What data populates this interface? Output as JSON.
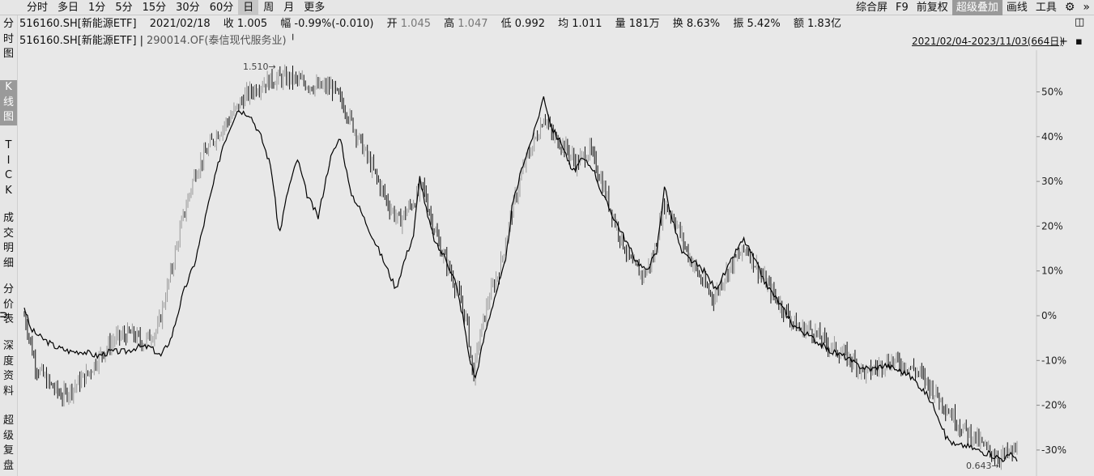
{
  "toolbar": {
    "periods": [
      {
        "label": "分时"
      },
      {
        "label": "多日"
      },
      {
        "label": "1分"
      },
      {
        "label": "5分"
      },
      {
        "label": "15分"
      },
      {
        "label": "30分"
      },
      {
        "label": "60分"
      },
      {
        "label": "日",
        "active": true
      },
      {
        "label": "周"
      },
      {
        "label": "月"
      },
      {
        "label": "更多"
      }
    ],
    "right_tools": [
      {
        "label": "综合屏"
      },
      {
        "label": "F9"
      },
      {
        "label": "前复权"
      },
      {
        "label": "超级叠加",
        "active": true
      },
      {
        "label": "画线"
      },
      {
        "label": "工具"
      }
    ],
    "settings_icon": "gear-icon",
    "expand_icon": "double-chevron-right-icon"
  },
  "sidenav": {
    "items": [
      {
        "label": "分\n时\n图"
      },
      {
        "label": "K\n线\n图",
        "active": true
      },
      {
        "label": "T\nI\nC\nK"
      },
      {
        "label": "成\n交\n明\n细"
      },
      {
        "label": "分\n价\n表"
      },
      {
        "label": "深\n度\n资\n料"
      },
      {
        "label": "超\n级\n复\n盘"
      }
    ],
    "collapse_icon": "chevron-left-icon"
  },
  "info": {
    "code": "516160.SH[新能源ETF]",
    "date": "2021/02/18",
    "close": "收 1.005",
    "change": "幅 -0.99%(-0.010)",
    "open_label": "开",
    "open_value": "1.045",
    "high_label": "高",
    "high_value": "1.047",
    "low": "低 0.992",
    "avg": "均 1.011",
    "volume": "量 181万",
    "turnover": "换 8.63%",
    "amplitude": "振 5.42%",
    "amount": "额 1.83亿"
  },
  "legend": {
    "primary": "516160.SH[新能源ETF]",
    "separator": "|",
    "overlay": "290014.OF(泰信现代服务业)",
    "range": "2021/02/04-2023/11/03(664日)"
  },
  "chart_data": {
    "type": "line",
    "x_range": [
      "2021/02/04",
      "2023/11/03"
    ],
    "trading_days": 664,
    "y_axis_unit": "%",
    "y_ticks": [
      "50%",
      "40%",
      "30%",
      "20%",
      "10%",
      "0%",
      "-10%",
      "-20%",
      "-30%"
    ],
    "ylim": [
      -34,
      57
    ],
    "annotations": [
      {
        "text": "1.510",
        "at": "max",
        "arrow": "right"
      },
      {
        "text": "0.643",
        "at": "min",
        "arrow": "right"
      }
    ],
    "series": [
      {
        "kind": "candlestick",
        "color": "#000000",
        "knots": [
          [
            0,
            0
          ],
          [
            4,
            -3
          ],
          [
            14,
            -11
          ],
          [
            30,
            -15
          ],
          [
            48,
            -18
          ],
          [
            62,
            -16
          ],
          [
            80,
            -13
          ],
          [
            95,
            -9
          ],
          [
            115,
            -5
          ],
          [
            135,
            -4
          ],
          [
            150,
            -6
          ],
          [
            168,
            -3
          ],
          [
            185,
            10
          ],
          [
            200,
            22
          ],
          [
            215,
            32
          ],
          [
            240,
            40
          ],
          [
            258,
            44
          ],
          [
            278,
            49
          ],
          [
            300,
            52
          ],
          [
            318,
            53
          ],
          [
            335,
            53
          ],
          [
            352,
            52
          ],
          [
            370,
            51
          ],
          [
            388,
            51
          ],
          [
            405,
            46
          ],
          [
            420,
            40
          ],
          [
            438,
            33
          ],
          [
            458,
            25
          ],
          [
            472,
            21
          ],
          [
            488,
            25
          ],
          [
            502,
            29
          ],
          [
            512,
            22
          ],
          [
            524,
            15
          ],
          [
            536,
            10
          ],
          [
            548,
            4
          ],
          [
            558,
            -2
          ],
          [
            565,
            -14
          ],
          [
            572,
            -6
          ],
          [
            585,
            4
          ],
          [
            598,
            10
          ],
          [
            615,
            24
          ],
          [
            630,
            34
          ],
          [
            645,
            40
          ],
          [
            655,
            45
          ],
          [
            665,
            40
          ],
          [
            680,
            38
          ],
          [
            695,
            34
          ],
          [
            712,
            37
          ],
          [
            725,
            31
          ],
          [
            738,
            24
          ],
          [
            752,
            17
          ],
          [
            766,
            11
          ],
          [
            780,
            9
          ],
          [
            792,
            13
          ],
          [
            805,
            25
          ],
          [
            818,
            22
          ],
          [
            835,
            14
          ],
          [
            852,
            8
          ],
          [
            868,
            4
          ],
          [
            882,
            9
          ],
          [
            897,
            13
          ],
          [
            910,
            15
          ],
          [
            925,
            10
          ],
          [
            942,
            5
          ],
          [
            958,
            1
          ],
          [
            975,
            -3
          ],
          [
            990,
            -3
          ],
          [
            1008,
            -6
          ],
          [
            1025,
            -8
          ],
          [
            1043,
            -10
          ],
          [
            1060,
            -13
          ],
          [
            1078,
            -11
          ],
          [
            1092,
            -10
          ],
          [
            1110,
            -11
          ],
          [
            1128,
            -13
          ],
          [
            1146,
            -17
          ],
          [
            1163,
            -21
          ],
          [
            1180,
            -25
          ],
          [
            1196,
            -27
          ],
          [
            1212,
            -30
          ],
          [
            1228,
            -31.5
          ],
          [
            1238,
            -31
          ],
          [
            1250,
            -30
          ]
        ]
      },
      {
        "kind": "line",
        "color": "#000000",
        "knots": [
          [
            0,
            2
          ],
          [
            8,
            -3
          ],
          [
            22,
            -5
          ],
          [
            40,
            -7
          ],
          [
            58,
            -8
          ],
          [
            75,
            -8
          ],
          [
            92,
            -9
          ],
          [
            108,
            -8
          ],
          [
            128,
            -8
          ],
          [
            142,
            -7
          ],
          [
            158,
            -7
          ],
          [
            172,
            -9
          ],
          [
            185,
            -5
          ],
          [
            200,
            5
          ],
          [
            215,
            12
          ],
          [
            232,
            25
          ],
          [
            250,
            38
          ],
          [
            268,
            46
          ],
          [
            284,
            45
          ],
          [
            298,
            40
          ],
          [
            311,
            33
          ],
          [
            321,
            18
          ],
          [
            332,
            28
          ],
          [
            344,
            35
          ],
          [
            356,
            27
          ],
          [
            370,
            22
          ],
          [
            385,
            35
          ],
          [
            398,
            40
          ],
          [
            410,
            28
          ],
          [
            422,
            24
          ],
          [
            435,
            19
          ],
          [
            448,
            14
          ],
          [
            458,
            10
          ],
          [
            468,
            6
          ],
          [
            478,
            12
          ],
          [
            490,
            18
          ],
          [
            498,
            31
          ],
          [
            508,
            22
          ],
          [
            518,
            16
          ],
          [
            530,
            13
          ],
          [
            542,
            8
          ],
          [
            552,
            0
          ],
          [
            560,
            -9
          ],
          [
            568,
            -14
          ],
          [
            580,
            -4
          ],
          [
            592,
            4
          ],
          [
            606,
            12
          ],
          [
            614,
            24
          ],
          [
            628,
            34
          ],
          [
            642,
            41
          ],
          [
            654,
            49
          ],
          [
            664,
            42
          ],
          [
            678,
            38
          ],
          [
            690,
            32
          ],
          [
            703,
            35
          ],
          [
            716,
            33
          ],
          [
            728,
            27
          ],
          [
            742,
            22
          ],
          [
            754,
            18
          ],
          [
            768,
            13
          ],
          [
            782,
            10
          ],
          [
            796,
            14
          ],
          [
            806,
            29
          ],
          [
            815,
            22
          ],
          [
            828,
            14
          ],
          [
            842,
            12
          ],
          [
            856,
            10
          ],
          [
            870,
            6
          ],
          [
            884,
            10
          ],
          [
            898,
            15
          ],
          [
            906,
            17
          ],
          [
            918,
            13
          ],
          [
            934,
            7
          ],
          [
            950,
            3
          ],
          [
            968,
            -2
          ],
          [
            984,
            -4
          ],
          [
            1000,
            -6
          ],
          [
            1016,
            -8
          ],
          [
            1032,
            -9
          ],
          [
            1048,
            -11
          ],
          [
            1066,
            -12
          ],
          [
            1084,
            -11
          ],
          [
            1098,
            -12
          ],
          [
            1112,
            -13
          ],
          [
            1124,
            -15
          ],
          [
            1138,
            -18
          ],
          [
            1150,
            -22
          ],
          [
            1160,
            -27
          ],
          [
            1172,
            -29
          ],
          [
            1186,
            -29
          ],
          [
            1200,
            -30
          ],
          [
            1216,
            -31
          ],
          [
            1232,
            -32
          ],
          [
            1244,
            -31
          ],
          [
            1250,
            -32
          ]
        ]
      }
    ]
  }
}
